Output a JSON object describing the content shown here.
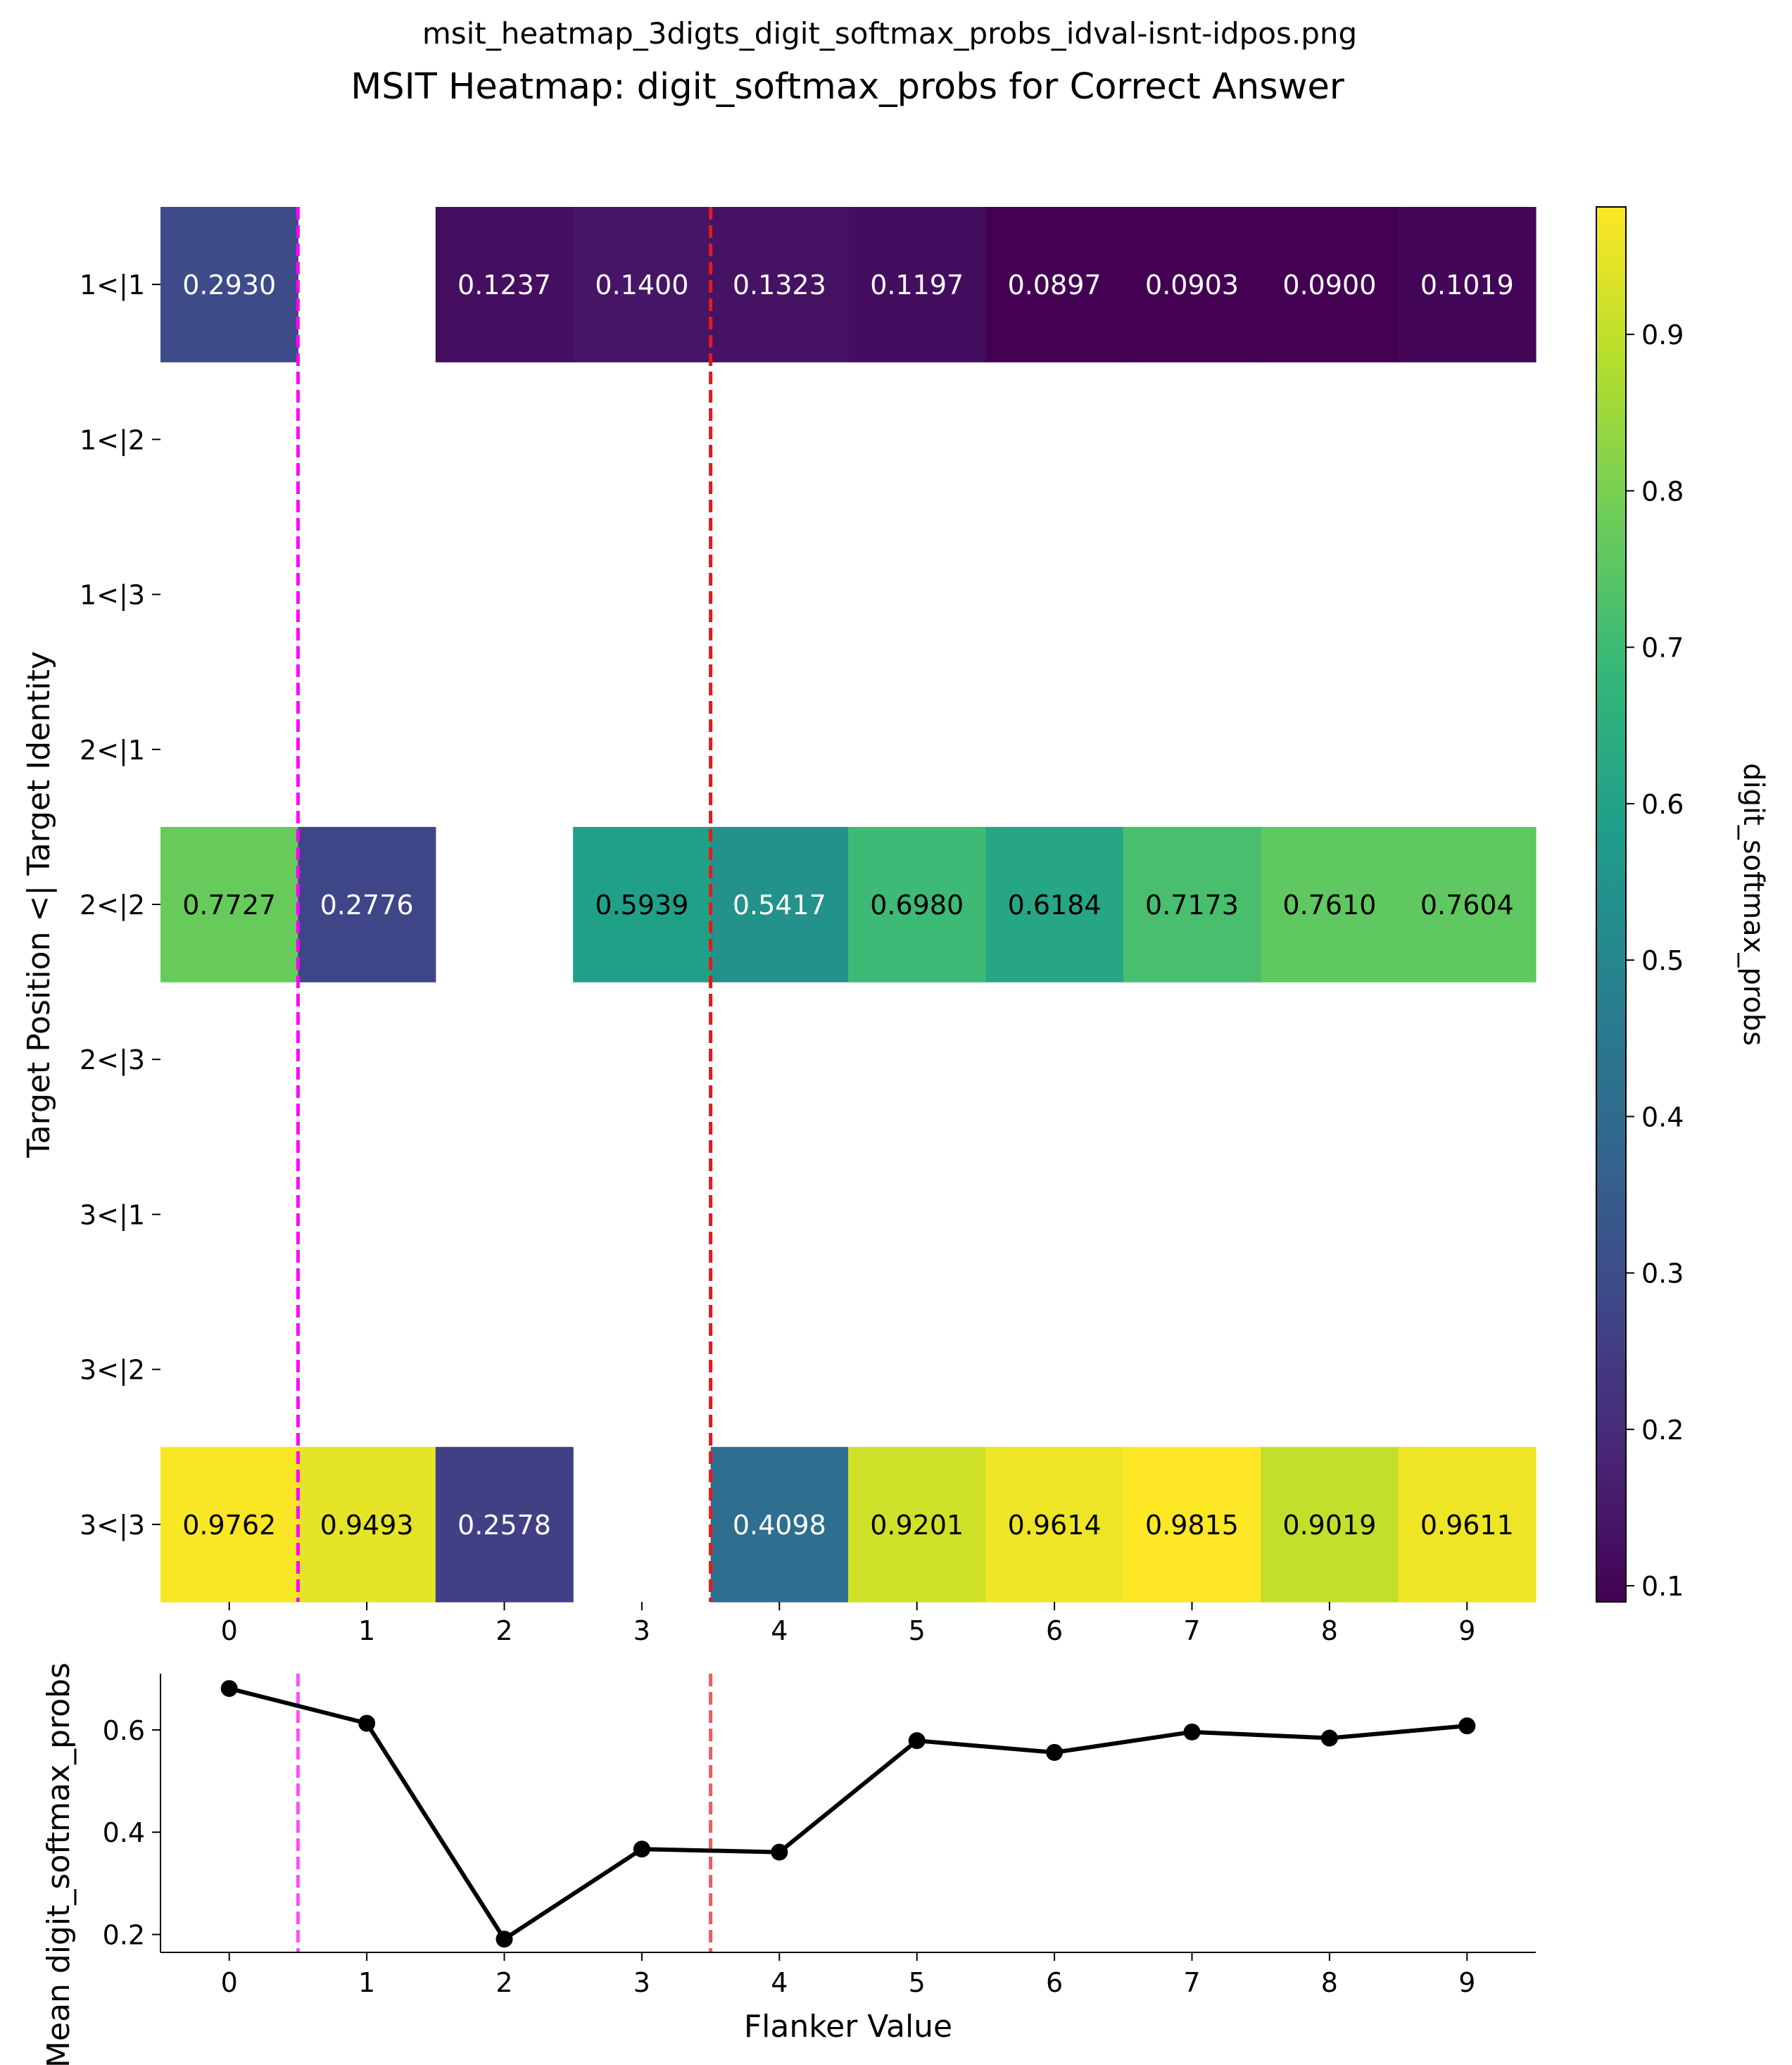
{
  "suptitle": "msit_heatmap_3digts_digit_softmax_probs_idval-isnt-idpos.png",
  "chart_data": [
    {
      "type": "heatmap",
      "title": "MSIT Heatmap: digit_softmax_probs for Correct Answer",
      "xlabel": "",
      "ylabel": "Target Position <| Target Identity",
      "x_categories": [
        "0",
        "1",
        "2",
        "3",
        "4",
        "5",
        "6",
        "7",
        "8",
        "9"
      ],
      "y_categories": [
        "1<|1",
        "1<|2",
        "1<|3",
        "2<|1",
        "2<|2",
        "2<|3",
        "3<|1",
        "3<|2",
        "3<|3"
      ],
      "values": [
        [
          0.293,
          null,
          0.1237,
          0.14,
          0.1323,
          0.1197,
          0.0897,
          0.0903,
          0.09,
          0.1019
        ],
        [
          null,
          null,
          null,
          null,
          null,
          null,
          null,
          null,
          null,
          null
        ],
        [
          null,
          null,
          null,
          null,
          null,
          null,
          null,
          null,
          null,
          null
        ],
        [
          null,
          null,
          null,
          null,
          null,
          null,
          null,
          null,
          null,
          null
        ],
        [
          0.7727,
          0.2776,
          null,
          0.5939,
          0.5417,
          0.698,
          0.6184,
          0.7173,
          0.761,
          0.7604
        ],
        [
          null,
          null,
          null,
          null,
          null,
          null,
          null,
          null,
          null,
          null
        ],
        [
          null,
          null,
          null,
          null,
          null,
          null,
          null,
          null,
          null,
          null
        ],
        [
          null,
          null,
          null,
          null,
          null,
          null,
          null,
          null,
          null,
          null
        ],
        [
          0.9762,
          0.9493,
          0.2578,
          null,
          0.4098,
          0.9201,
          0.9614,
          0.9815,
          0.9019,
          0.9611
        ]
      ],
      "value_labels": [
        [
          "0.2930",
          "",
          "0.1237",
          "0.1400",
          "0.1323",
          "0.1197",
          "0.0897",
          "0.0903",
          "0.0900",
          "0.1019"
        ],
        [
          "",
          "",
          "",
          "",
          "",
          "",
          "",
          "",
          "",
          ""
        ],
        [
          "",
          "",
          "",
          "",
          "",
          "",
          "",
          "",
          "",
          ""
        ],
        [
          "",
          "",
          "",
          "",
          "",
          "",
          "",
          "",
          "",
          ""
        ],
        [
          "0.7727",
          "0.2776",
          "",
          "0.5939",
          "0.5417",
          "0.6980",
          "0.6184",
          "0.7173",
          "0.7610",
          "0.7604"
        ],
        [
          "",
          "",
          "",
          "",
          "",
          "",
          "",
          "",
          "",
          ""
        ],
        [
          "",
          "",
          "",
          "",
          "",
          "",
          "",
          "",
          "",
          ""
        ],
        [
          "",
          "",
          "",
          "",
          "",
          "",
          "",
          "",
          "",
          ""
        ],
        [
          "0.9762",
          "0.9493",
          "0.2578",
          "",
          "0.4098",
          "0.9201",
          "0.9614",
          "0.9815",
          "0.9019",
          "0.9611"
        ]
      ],
      "colormap": "viridis",
      "colorbar": {
        "label": "digit_softmax_probs",
        "range": [
          0.0897,
          0.9815
        ],
        "ticks": [
          0.1,
          0.2,
          0.3,
          0.4,
          0.5,
          0.6,
          0.7,
          0.8,
          0.9
        ],
        "tick_labels": [
          "0.1",
          "0.2",
          "0.3",
          "0.4",
          "0.5",
          "0.6",
          "0.7",
          "0.8",
          "0.9"
        ]
      },
      "vertical_lines": [
        {
          "x": 0.5,
          "color": "#ff00ff",
          "style": "dashed"
        },
        {
          "x": 3.5,
          "color": "#e31a1c",
          "style": "dashed"
        }
      ]
    },
    {
      "type": "line",
      "title": "",
      "xlabel": "Flanker Value",
      "ylabel": "Mean digit_softmax_probs",
      "x": [
        0,
        1,
        2,
        3,
        4,
        5,
        6,
        7,
        8,
        9
      ],
      "x_tick_labels": [
        "0",
        "1",
        "2",
        "3",
        "4",
        "5",
        "6",
        "7",
        "8",
        "9"
      ],
      "values": [
        0.681,
        0.613,
        0.191,
        0.367,
        0.361,
        0.579,
        0.556,
        0.596,
        0.584,
        0.608
      ],
      "xlim": [
        -0.5,
        9.5
      ],
      "ylim": [
        0.165,
        0.71
      ],
      "y_ticks": [
        0.2,
        0.4,
        0.6
      ],
      "y_tick_labels": [
        "0.2",
        "0.4",
        "0.6"
      ],
      "line_color": "#000000",
      "marker": "circle",
      "vertical_lines": [
        {
          "x": 0.5,
          "color": "#ff00ff",
          "style": "dashed"
        },
        {
          "x": 3.5,
          "color": "#e31a1c",
          "style": "dashed"
        }
      ]
    }
  ]
}
